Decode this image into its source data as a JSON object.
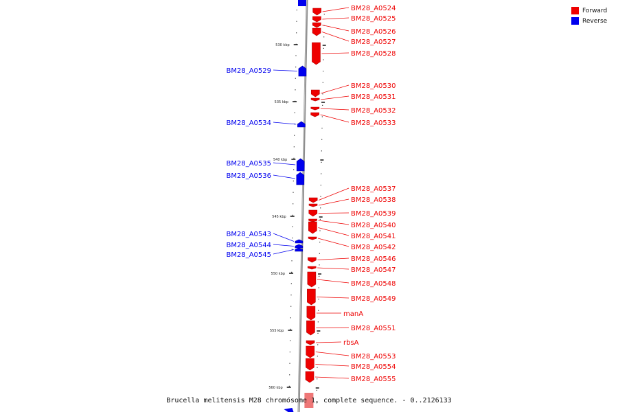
{
  "legend": {
    "forward_label": "Forward",
    "reverse_label": "Reverse"
  },
  "colors": {
    "forward": "#ee0000",
    "reverse": "#0000ee",
    "axis": "#888888"
  },
  "caption": "Brucella melitensis M28 chromosome 1, complete sequence. - 0..2126133",
  "scale_ticks": [
    "530 kbp",
    "535 kbp",
    "540 kbp",
    "545 kbp",
    "550 kbp",
    "555 kbp",
    "560 kbp"
  ],
  "genes": [
    {
      "name": "BM28_A0524",
      "strand": "forward"
    },
    {
      "name": "BM28_A0525",
      "strand": "forward"
    },
    {
      "name": "BM28_A0526",
      "strand": "forward"
    },
    {
      "name": "BM28_A0527",
      "strand": "forward"
    },
    {
      "name": "BM28_A0528",
      "strand": "forward"
    },
    {
      "name": "BM28_A0529",
      "strand": "reverse"
    },
    {
      "name": "BM28_A0530",
      "strand": "forward"
    },
    {
      "name": "BM28_A0531",
      "strand": "forward"
    },
    {
      "name": "BM28_A0532",
      "strand": "forward"
    },
    {
      "name": "BM28_A0533",
      "strand": "forward"
    },
    {
      "name": "BM28_A0534",
      "strand": "reverse"
    },
    {
      "name": "BM28_A0535",
      "strand": "reverse"
    },
    {
      "name": "BM28_A0536",
      "strand": "reverse"
    },
    {
      "name": "BM28_A0537",
      "strand": "forward"
    },
    {
      "name": "BM28_A0538",
      "strand": "forward"
    },
    {
      "name": "BM28_A0539",
      "strand": "forward"
    },
    {
      "name": "BM28_A0540",
      "strand": "forward"
    },
    {
      "name": "BM28_A0541",
      "strand": "forward"
    },
    {
      "name": "BM28_A0542",
      "strand": "forward"
    },
    {
      "name": "BM28_A0543",
      "strand": "reverse"
    },
    {
      "name": "BM28_A0544",
      "strand": "reverse"
    },
    {
      "name": "BM28_A0545",
      "strand": "reverse"
    },
    {
      "name": "BM28_A0546",
      "strand": "forward"
    },
    {
      "name": "BM28_A0547",
      "strand": "forward"
    },
    {
      "name": "BM28_A0548",
      "strand": "forward"
    },
    {
      "name": "BM28_A0549",
      "strand": "forward"
    },
    {
      "name": "manA",
      "strand": "forward"
    },
    {
      "name": "BM28_A0551",
      "strand": "forward"
    },
    {
      "name": "rbsA",
      "strand": "forward"
    },
    {
      "name": "BM28_A0553",
      "strand": "forward"
    },
    {
      "name": "BM28_A0554",
      "strand": "forward"
    },
    {
      "name": "BM28_A0555",
      "strand": "forward"
    }
  ]
}
